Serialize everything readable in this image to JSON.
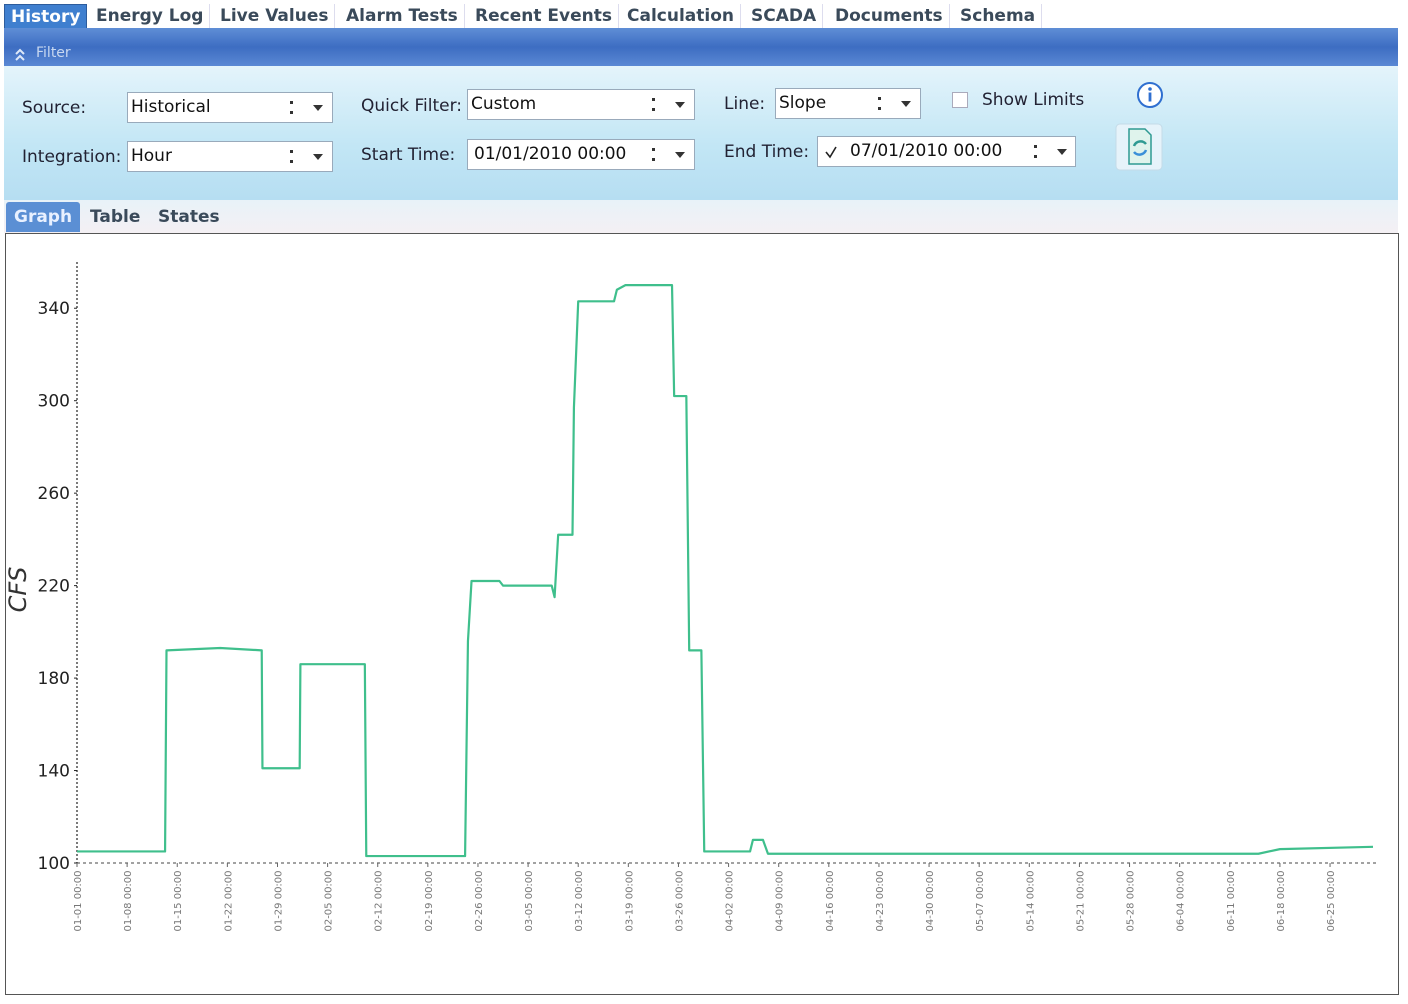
{
  "tabs": [
    "History",
    "Energy Log",
    "Live Values",
    "Alarm Tests",
    "Recent Events",
    "Calculation",
    "SCADA",
    "Documents",
    "Schema"
  ],
  "filter": {
    "title": "Filter",
    "source": {
      "label": "Source:",
      "value": "Historical"
    },
    "integration": {
      "label": "Integration:",
      "value": "Hour"
    },
    "quick_filter": {
      "label": "Quick Filter:",
      "value": "Custom"
    },
    "start_time": {
      "label": "Start Time:",
      "value": "01/01/2010 00:00"
    },
    "line": {
      "label": "Line:",
      "value": "Slope"
    },
    "end_time": {
      "label": "End Time:",
      "value": "07/01/2010 00:00"
    },
    "show_limits": "Show Limits"
  },
  "view_tabs": [
    "Graph",
    "Table",
    "States"
  ],
  "chart_data": {
    "type": "line",
    "y_label": "CFS",
    "color": "#3fbf8c",
    "x": [
      0,
      12.3,
      12.5,
      20,
      25.8,
      25.9,
      31.1,
      31.2,
      40.2,
      40.4,
      54.2,
      54.6,
      55.1,
      59,
      59.5,
      66.3,
      66.7,
      67.2,
      69.2,
      69.4,
      70,
      75,
      75.4,
      76.6,
      83.1,
      83.4,
      85.1,
      85.5,
      87.2,
      87.6,
      94,
      94.4,
      95.8,
      96.5,
      165,
      168,
      181
    ],
    "values": [
      105,
      105,
      192,
      193,
      192,
      141,
      141,
      186,
      186,
      103,
      103,
      196,
      222,
      222,
      220,
      220,
      215,
      242,
      242,
      297,
      343,
      343,
      348,
      350,
      350,
      302,
      302,
      192,
      192,
      105,
      105,
      110,
      110,
      104,
      104,
      106,
      107
    ],
    "xlim": [
      0,
      181
    ],
    "xticks": [
      {
        "value": 0,
        "label": "01-01 00:00"
      },
      {
        "value": 7,
        "label": "01-08 00:00"
      },
      {
        "value": 14,
        "label": "01-15 00:00"
      },
      {
        "value": 21,
        "label": "01-22 00:00"
      },
      {
        "value": 28,
        "label": "01-29 00:00"
      },
      {
        "value": 35,
        "label": "02-05 00:00"
      },
      {
        "value": 42,
        "label": "02-12 00:00"
      },
      {
        "value": 49,
        "label": "02-19 00:00"
      },
      {
        "value": 56,
        "label": "02-26 00:00"
      },
      {
        "value": 63,
        "label": "03-05 00:00"
      },
      {
        "value": 70,
        "label": "03-12 00:00"
      },
      {
        "value": 77,
        "label": "03-19 00:00"
      },
      {
        "value": 84,
        "label": "03-26 00:00"
      },
      {
        "value": 91,
        "label": "04-02 00:00"
      },
      {
        "value": 98,
        "label": "04-09 00:00"
      },
      {
        "value": 105,
        "label": "04-16 00:00"
      },
      {
        "value": 112,
        "label": "04-23 00:00"
      },
      {
        "value": 119,
        "label": "04-30 00:00"
      },
      {
        "value": 126,
        "label": "05-07 00:00"
      },
      {
        "value": 133,
        "label": "05-14 00:00"
      },
      {
        "value": 140,
        "label": "05-21 00:00"
      },
      {
        "value": 147,
        "label": "05-28 00:00"
      },
      {
        "value": 154,
        "label": "06-04 00:00"
      },
      {
        "value": 161,
        "label": "06-11 00:00"
      },
      {
        "value": 168,
        "label": "06-18 00:00"
      },
      {
        "value": 175,
        "label": "06-25 00:00"
      }
    ],
    "ylim": [
      100,
      360
    ],
    "yticks": [
      100,
      140,
      180,
      220,
      260,
      300,
      340
    ]
  }
}
